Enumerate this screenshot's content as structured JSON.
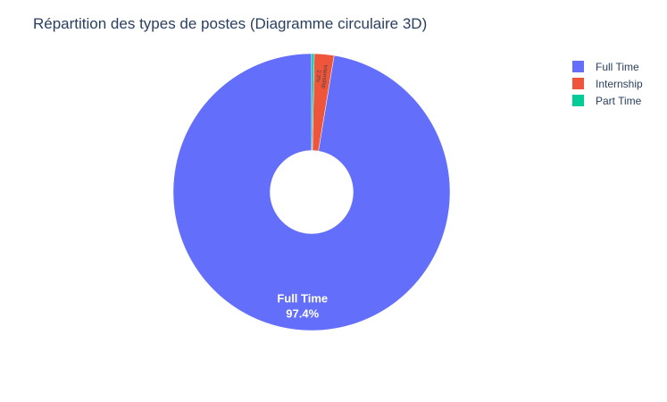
{
  "chart_data": {
    "type": "pie",
    "title": "Répartition des types de postes (Diagramme circulaire 3D)",
    "hole": 0.3,
    "slices": [
      {
        "label": "Full Time",
        "value": 97.4,
        "percent_text": "97.4%",
        "color": "#636efa"
      },
      {
        "label": "Internship",
        "value": 2.3,
        "percent_text": "2.3%",
        "color": "#ef553b"
      },
      {
        "label": "Part Time",
        "value": 0.3,
        "percent_text": "0.3%",
        "color": "#00cc96"
      }
    ],
    "legend": {
      "placement": "top-right",
      "entries": [
        "Full Time",
        "Internship",
        "Part Time"
      ]
    }
  }
}
